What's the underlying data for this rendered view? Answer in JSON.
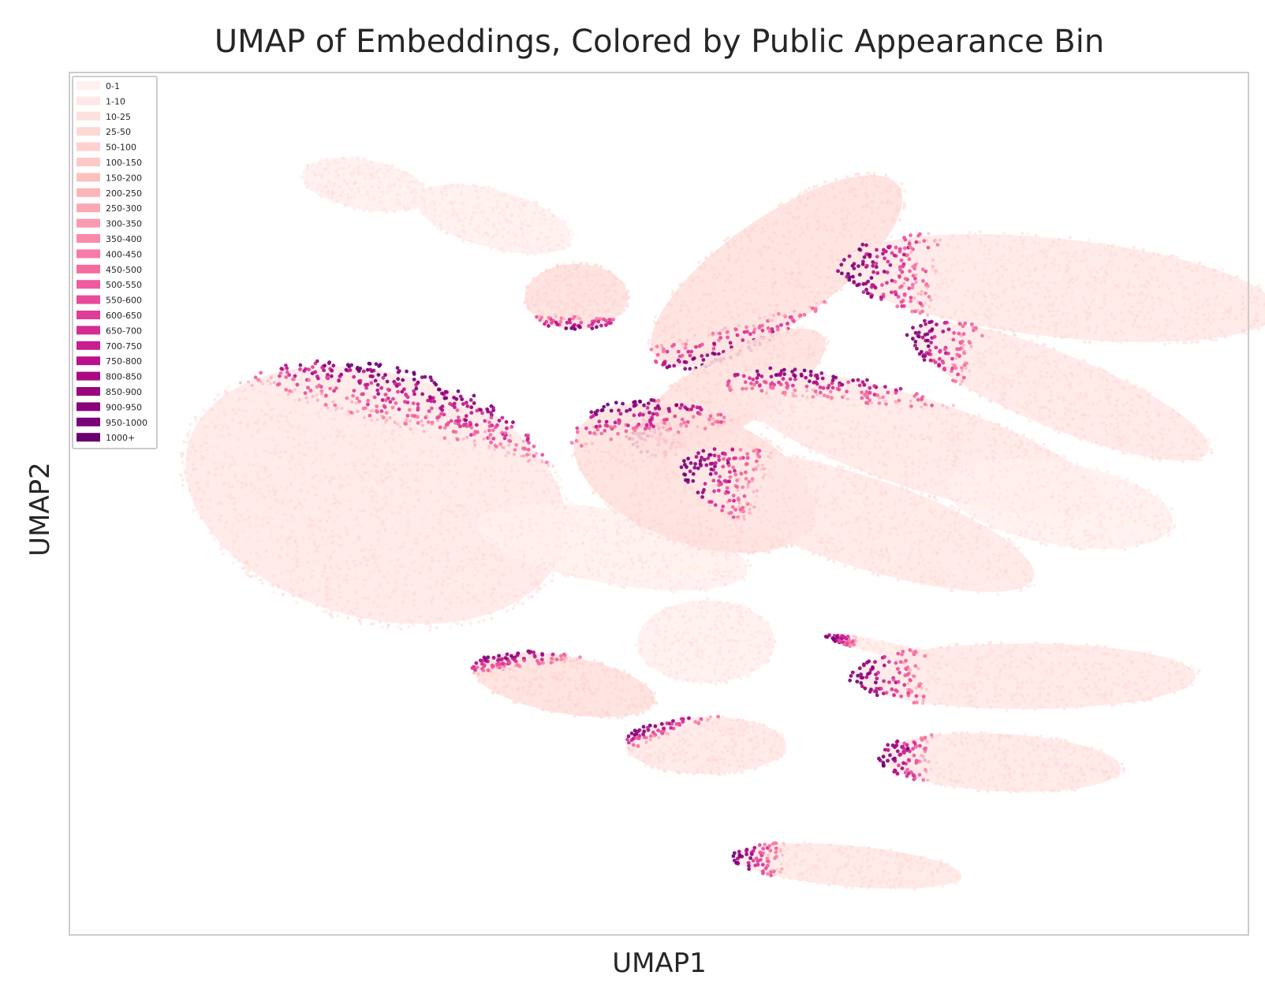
{
  "chart_data": {
    "type": "scatter",
    "title": "UMAP of Embeddings, Colored by Public Appearance Bin",
    "xlabel": "UMAP1",
    "ylabel": "UMAP2",
    "ticks_shown": false,
    "grid": false,
    "legend_position": "top-left",
    "legend": [
      {
        "label": "0-1",
        "color": "#fff0ee"
      },
      {
        "label": "1-10",
        "color": "#ffe8e5"
      },
      {
        "label": "10-25",
        "color": "#fee0dd"
      },
      {
        "label": "25-50",
        "color": "#fdd9d5"
      },
      {
        "label": "50-100",
        "color": "#fdd2ce"
      },
      {
        "label": "100-150",
        "color": "#fccac6"
      },
      {
        "label": "150-200",
        "color": "#fcc1bd"
      },
      {
        "label": "200-250",
        "color": "#fbb6b8"
      },
      {
        "label": "250-300",
        "color": "#fba8b5"
      },
      {
        "label": "300-350",
        "color": "#fa9ab0"
      },
      {
        "label": "350-400",
        "color": "#f98aa9"
      },
      {
        "label": "400-450",
        "color": "#f77ba4"
      },
      {
        "label": "450-500",
        "color": "#f46b9f"
      },
      {
        "label": "500-550",
        "color": "#ef5b9d"
      },
      {
        "label": "550-600",
        "color": "#e84b9b"
      },
      {
        "label": "600-650",
        "color": "#df3b98"
      },
      {
        "label": "650-700",
        "color": "#d42c95"
      },
      {
        "label": "700-750",
        "color": "#c81e91"
      },
      {
        "label": "750-800",
        "color": "#ba1189"
      },
      {
        "label": "800-850",
        "color": "#ab0982"
      },
      {
        "label": "850-900",
        "color": "#9a047d"
      },
      {
        "label": "900-950",
        "color": "#8a017a"
      },
      {
        "label": "950-1000",
        "color": "#7a0177"
      },
      {
        "label": "1000+",
        "color": "#6a0170"
      }
    ],
    "clusters": [
      {
        "cx": 0.25,
        "cy": 0.87,
        "rx": 0.055,
        "ry": 0.03,
        "rot": -10,
        "base": 0,
        "edge": "none"
      },
      {
        "cx": 0.43,
        "cy": 0.74,
        "rx": 0.045,
        "ry": 0.04,
        "rot": 0,
        "base": 2,
        "edge": "bottom"
      },
      {
        "cx": 0.36,
        "cy": 0.83,
        "rx": 0.07,
        "ry": 0.035,
        "rot": -15,
        "base": 0,
        "edge": "none"
      },
      {
        "cx": 0.6,
        "cy": 0.77,
        "rx": 0.13,
        "ry": 0.065,
        "rot": 35,
        "base": 2,
        "edge": "bottom-left"
      },
      {
        "cx": 0.56,
        "cy": 0.63,
        "rx": 0.095,
        "ry": 0.045,
        "rot": 30,
        "base": 2,
        "edge": "left"
      },
      {
        "cx": 0.84,
        "cy": 0.75,
        "rx": 0.19,
        "ry": 0.06,
        "rot": -6,
        "base": 1,
        "edge": "left"
      },
      {
        "cx": 0.26,
        "cy": 0.51,
        "rx": 0.17,
        "ry": 0.15,
        "rot": -15,
        "base": 1,
        "edge": "top"
      },
      {
        "cx": 0.46,
        "cy": 0.45,
        "rx": 0.12,
        "ry": 0.045,
        "rot": -10,
        "base": 0,
        "edge": "none"
      },
      {
        "cx": 0.53,
        "cy": 0.53,
        "rx": 0.11,
        "ry": 0.08,
        "rot": -20,
        "base": 2,
        "edge": "top-left"
      },
      {
        "cx": 0.67,
        "cy": 0.48,
        "rx": 0.16,
        "ry": 0.055,
        "rot": -18,
        "base": 1,
        "edge": "left"
      },
      {
        "cx": 0.72,
        "cy": 0.57,
        "rx": 0.17,
        "ry": 0.055,
        "rot": -18,
        "base": 1,
        "edge": "top-left"
      },
      {
        "cx": 0.84,
        "cy": 0.63,
        "rx": 0.14,
        "ry": 0.045,
        "rot": -22,
        "base": 1,
        "edge": "left"
      },
      {
        "cx": 0.84,
        "cy": 0.5,
        "rx": 0.1,
        "ry": 0.05,
        "rot": -10,
        "base": 0,
        "edge": "none"
      },
      {
        "cx": 0.54,
        "cy": 0.22,
        "rx": 0.07,
        "ry": 0.035,
        "rot": 0,
        "base": 1,
        "edge": "top-left"
      },
      {
        "cx": 0.42,
        "cy": 0.29,
        "rx": 0.08,
        "ry": 0.035,
        "rot": -10,
        "base": 2,
        "edge": "top-left"
      },
      {
        "cx": 0.54,
        "cy": 0.34,
        "rx": 0.06,
        "ry": 0.05,
        "rot": 0,
        "base": 0,
        "edge": "none"
      },
      {
        "cx": 0.7,
        "cy": 0.33,
        "rx": 0.06,
        "ry": 0.008,
        "rot": -12,
        "base": 0,
        "edge": "left"
      },
      {
        "cx": 0.81,
        "cy": 0.3,
        "rx": 0.15,
        "ry": 0.04,
        "rot": 0,
        "base": 1,
        "edge": "left"
      },
      {
        "cx": 0.79,
        "cy": 0.2,
        "rx": 0.105,
        "ry": 0.035,
        "rot": -3,
        "base": 1,
        "edge": "left"
      },
      {
        "cx": 0.66,
        "cy": 0.08,
        "rx": 0.1,
        "ry": 0.025,
        "rot": -5,
        "base": 1,
        "edge": "left"
      }
    ]
  }
}
